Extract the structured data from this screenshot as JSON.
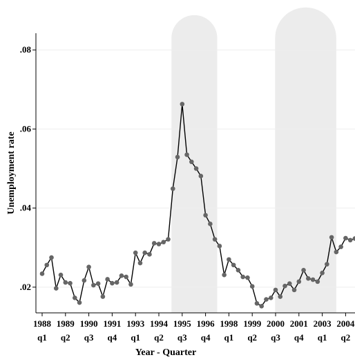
{
  "chart_data": {
    "type": "line",
    "y_label": "Unemployment rate",
    "x_label": "Year - Quarter",
    "categories": [
      "1988 q1",
      null,
      null,
      null,
      null,
      "1989 q2",
      null,
      null,
      null,
      null,
      "1990 q3",
      null,
      null,
      null,
      null,
      "1991 q4",
      null,
      null,
      null,
      null,
      "1993 q1",
      null,
      null,
      null,
      null,
      "1994 q2",
      null,
      null,
      null,
      null,
      "1995 q3",
      null,
      null,
      null,
      null,
      "1996 q4",
      null,
      null,
      null,
      null,
      "1998 q1",
      null,
      null,
      null,
      null,
      "1999 q2",
      null,
      null,
      null,
      null,
      "2000 q3",
      null,
      null,
      null,
      null,
      "2001 q4",
      null,
      null,
      null,
      null,
      "2003 q1",
      null,
      null,
      null,
      null,
      "2004 q2",
      null,
      null
    ],
    "series": [
      {
        "color": "#666666",
        "line_color": "#000000",
        "values": [
          0.0234,
          0.0256,
          0.0275,
          0.0197,
          0.0231,
          0.0212,
          0.021,
          0.0173,
          0.0161,
          0.0217,
          0.0251,
          0.0205,
          0.0209,
          0.0176,
          0.022,
          0.021,
          0.0212,
          0.0229,
          0.0226,
          0.0207,
          0.0287,
          0.0261,
          0.0287,
          0.0283,
          0.0311,
          0.0309,
          0.0314,
          0.0321,
          0.0449,
          0.0529,
          0.0663,
          0.0535,
          0.0517,
          0.05,
          0.0481,
          0.0382,
          0.036,
          0.0321,
          0.0304,
          0.0231,
          0.027,
          0.0256,
          0.0243,
          0.0226,
          0.0224,
          0.0202,
          0.0159,
          0.0152,
          0.0169,
          0.0173,
          0.0193,
          0.0176,
          0.0203,
          0.0209,
          0.0193,
          0.0214,
          0.0243,
          0.0222,
          0.0219,
          0.0214,
          0.0236,
          0.0258,
          0.0326,
          0.0289,
          0.0302,
          0.0324,
          0.0319,
          0.0323
        ]
      }
    ],
    "shaded_regions": [
      [
        27.7,
        37.5
      ],
      [
        49.9,
        63.0
      ]
    ],
    "shade_color": "#ececec",
    "ylim": [
      0.0135,
      0.0865
    ],
    "yticks": [
      {
        "value": 0.02,
        "label": ".02"
      },
      {
        "value": 0.04,
        "label": ".04"
      },
      {
        "value": 0.06,
        "label": ".06"
      },
      {
        "value": 0.08,
        "label": ".08"
      }
    ],
    "grid": true
  }
}
